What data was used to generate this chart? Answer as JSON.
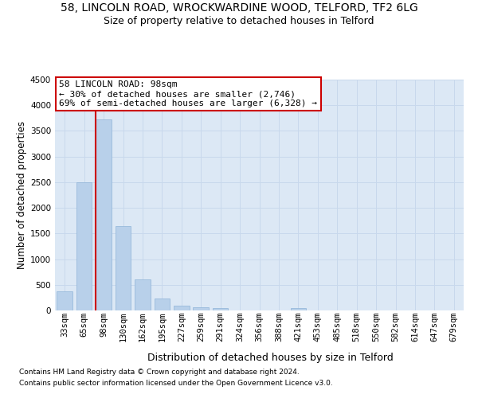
{
  "title_line1": "58, LINCOLN ROAD, WROCKWARDINE WOOD, TELFORD, TF2 6LG",
  "title_line2": "Size of property relative to detached houses in Telford",
  "xlabel": "Distribution of detached houses by size in Telford",
  "ylabel": "Number of detached properties",
  "categories": [
    "33sqm",
    "65sqm",
    "98sqm",
    "130sqm",
    "162sqm",
    "195sqm",
    "227sqm",
    "259sqm",
    "291sqm",
    "324sqm",
    "356sqm",
    "388sqm",
    "421sqm",
    "453sqm",
    "485sqm",
    "518sqm",
    "550sqm",
    "582sqm",
    "614sqm",
    "647sqm",
    "679sqm"
  ],
  "values": [
    380,
    2500,
    3730,
    1640,
    600,
    240,
    100,
    60,
    45,
    0,
    0,
    0,
    50,
    0,
    0,
    0,
    0,
    0,
    0,
    0,
    0
  ],
  "bar_color": "#b8d0ea",
  "bar_edge_color": "#8fb4d8",
  "highlight_bar_index": 2,
  "highlight_line_color": "#cc0000",
  "ylim_max": 4500,
  "yticks": [
    0,
    500,
    1000,
    1500,
    2000,
    2500,
    3000,
    3500,
    4000,
    4500
  ],
  "annotation_line1": "58 LINCOLN ROAD: 98sqm",
  "annotation_line2": "← 30% of detached houses are smaller (2,746)",
  "annotation_line3": "69% of semi-detached houses are larger (6,328) →",
  "annotation_box_edge_color": "#cc0000",
  "footnote_line1": "Contains HM Land Registry data © Crown copyright and database right 2024.",
  "footnote_line2": "Contains public sector information licensed under the Open Government Licence v3.0.",
  "grid_color": "#c8d8ec",
  "bg_color": "#dce8f5",
  "title1_fontsize": 10,
  "title2_fontsize": 9,
  "ylabel_fontsize": 8.5,
  "xlabel_fontsize": 9,
  "ann_fontsize": 8,
  "footnote_fontsize": 6.5,
  "tick_fontsize": 7.5
}
